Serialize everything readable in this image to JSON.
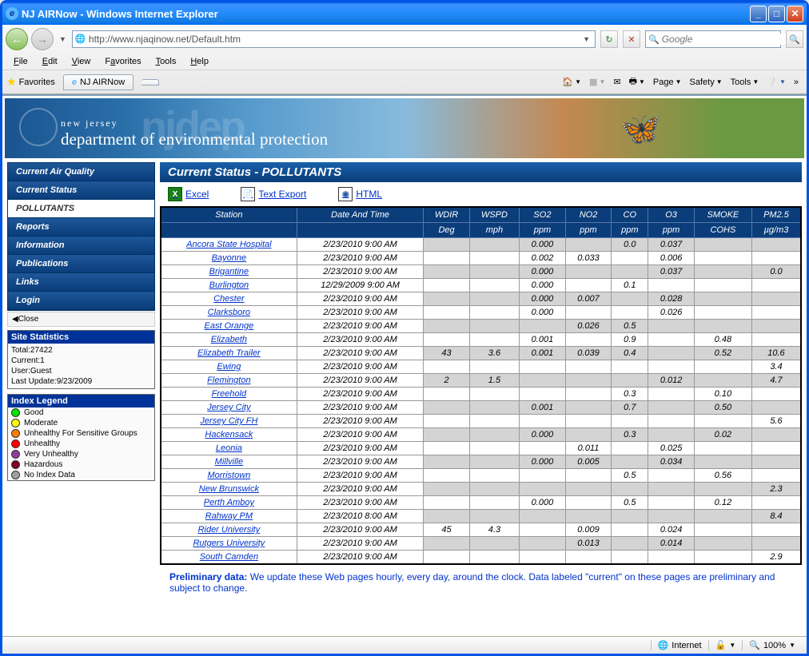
{
  "window": {
    "title": "NJ AIRNow - Windows Internet Explorer"
  },
  "address": {
    "url": "http://www.njaqinow.net/Default.htm",
    "url_bold": "njaqinow.net"
  },
  "search": {
    "placeholder": "Google"
  },
  "menu": {
    "file": "File",
    "edit": "Edit",
    "view": "View",
    "favorites": "Favorites",
    "tools": "Tools",
    "help": "Help"
  },
  "favBar": {
    "label": "Favorites",
    "tab": "NJ AIRNow"
  },
  "ieTools": {
    "page": "Page",
    "safety": "Safety",
    "tools": "Tools"
  },
  "header": {
    "nj": "new jersey",
    "dept": "department of environmental protection",
    "bg": "njdep"
  },
  "sidebar": {
    "items": [
      {
        "label": "Current Air Quality",
        "active": false
      },
      {
        "label": "Current Status",
        "active": false
      },
      {
        "label": "POLLUTANTS",
        "active": true
      },
      {
        "label": "Reports",
        "active": false
      },
      {
        "label": "Information",
        "active": false
      },
      {
        "label": "Publications",
        "active": false
      },
      {
        "label": "Links",
        "active": false
      },
      {
        "label": "Login",
        "active": false
      }
    ],
    "close": "Close"
  },
  "stats": {
    "title": "Site Statistics",
    "lines": [
      "Total:27422",
      "Current:1",
      "User:Guest",
      "Last Update:9/23/2009"
    ]
  },
  "legend": {
    "title": "Index Legend",
    "items": [
      {
        "color": "#00e400",
        "label": "Good"
      },
      {
        "color": "#ffff00",
        "label": "Moderate"
      },
      {
        "color": "#ff7e00",
        "label": "Unhealthy For Sensitive Groups"
      },
      {
        "color": "#ff0000",
        "label": "Unhealthy"
      },
      {
        "color": "#8f3f97",
        "label": "Very Unhealthy"
      },
      {
        "color": "#7e0023",
        "label": "Hazardous"
      },
      {
        "color": "#a0a0a0",
        "label": "No Index Data"
      }
    ]
  },
  "panel": {
    "title": "Current Status - POLLUTANTS"
  },
  "exports": {
    "excel": "Excel",
    "text": "Text Export",
    "html": "HTML"
  },
  "table": {
    "headers": [
      "Station",
      "Date And Time",
      "WDIR",
      "WSPD",
      "SO2",
      "NO2",
      "CO",
      "O3",
      "SMOKE",
      "PM2.5"
    ],
    "units": [
      "",
      "",
      "Deg",
      "mph",
      "ppm",
      "ppm",
      "ppm",
      "ppm",
      "COHS",
      "µg/m3"
    ],
    "rows": [
      [
        "Ancora State Hospital",
        "2/23/2010 9:00 AM",
        "",
        "",
        "0.000",
        "",
        "0.0",
        "0.037",
        "",
        ""
      ],
      [
        "Bayonne",
        "2/23/2010 9:00 AM",
        "",
        "",
        "0.002",
        "0.033",
        "",
        "0.006",
        "",
        ""
      ],
      [
        "Brigantine",
        "2/23/2010 9:00 AM",
        "",
        "",
        "0.000",
        "",
        "",
        "0.037",
        "",
        "0.0"
      ],
      [
        "Burlington",
        "12/29/2009 9:00 AM",
        "",
        "",
        "0.000",
        "",
        "0.1",
        "",
        "",
        ""
      ],
      [
        "Chester",
        "2/23/2010 9:00 AM",
        "",
        "",
        "0.000",
        "0.007",
        "",
        "0.028",
        "",
        ""
      ],
      [
        "Clarksboro",
        "2/23/2010 9:00 AM",
        "",
        "",
        "0.000",
        "",
        "",
        "0.026",
        "",
        ""
      ],
      [
        "East Orange",
        "2/23/2010 9:00 AM",
        "",
        "",
        "",
        "0.026",
        "0.5",
        "",
        "",
        ""
      ],
      [
        "Elizabeth",
        "2/23/2010 9:00 AM",
        "",
        "",
        "0.001",
        "",
        "0.9",
        "",
        "0.48",
        ""
      ],
      [
        "Elizabeth Trailer",
        "2/23/2010 9:00 AM",
        "43",
        "3.6",
        "0.001",
        "0.039",
        "0.4",
        "",
        "0.52",
        "10.6"
      ],
      [
        "Ewing",
        "2/23/2010 9:00 AM",
        "",
        "",
        "",
        "",
        "",
        "",
        "",
        "3.4"
      ],
      [
        "Flemington",
        "2/23/2010 9:00 AM",
        "2",
        "1.5",
        "",
        "",
        "",
        "0.012",
        "",
        "4.7"
      ],
      [
        "Freehold",
        "2/23/2010 9:00 AM",
        "",
        "",
        "",
        "",
        "0.3",
        "",
        "0.10",
        ""
      ],
      [
        "Jersey City",
        "2/23/2010 9:00 AM",
        "",
        "",
        "0.001",
        "",
        "0.7",
        "",
        "0.50",
        ""
      ],
      [
        "Jersey City FH",
        "2/23/2010 9:00 AM",
        "",
        "",
        "",
        "",
        "",
        "",
        "",
        "5.6"
      ],
      [
        "Hackensack",
        "2/23/2010 9:00 AM",
        "",
        "",
        "0.000",
        "",
        "0.3",
        "",
        "0.02",
        ""
      ],
      [
        "Leonia",
        "2/23/2010 9:00 AM",
        "",
        "",
        "",
        "0.011",
        "",
        "0.025",
        "",
        ""
      ],
      [
        "Millville",
        "2/23/2010 9:00 AM",
        "",
        "",
        "0.000",
        "0.005",
        "",
        "0.034",
        "",
        ""
      ],
      [
        "Morristown",
        "2/23/2010 9:00 AM",
        "",
        "",
        "",
        "",
        "0.5",
        "",
        "0.56",
        ""
      ],
      [
        "New Brunswick",
        "2/23/2010 9:00 AM",
        "",
        "",
        "",
        "",
        "",
        "",
        "",
        "2.3"
      ],
      [
        "Perth Amboy",
        "2/23/2010 9:00 AM",
        "",
        "",
        "0.000",
        "",
        "0.5",
        "",
        "0.12",
        ""
      ],
      [
        "Rahway PM",
        "2/23/2010 8:00 AM",
        "",
        "",
        "",
        "",
        "",
        "",
        "",
        "8.4"
      ],
      [
        "Rider University",
        "2/23/2010 9:00 AM",
        "45",
        "4.3",
        "",
        "0.009",
        "",
        "0.024",
        "",
        ""
      ],
      [
        "Rutgers University",
        "2/23/2010 9:00 AM",
        "",
        "",
        "",
        "0.013",
        "",
        "0.014",
        "",
        ""
      ],
      [
        "South Camden",
        "2/23/2010 9:00 AM",
        "",
        "",
        "",
        "",
        "",
        "",
        "",
        "2.9"
      ]
    ]
  },
  "footnote": {
    "bold": "Preliminary data: ",
    "text": "We update these Web pages hourly, every day, around the clock. Data labeled \"current\" on these pages are preliminary and subject to change."
  },
  "status": {
    "zone": "Internet",
    "zoom": "100%"
  }
}
